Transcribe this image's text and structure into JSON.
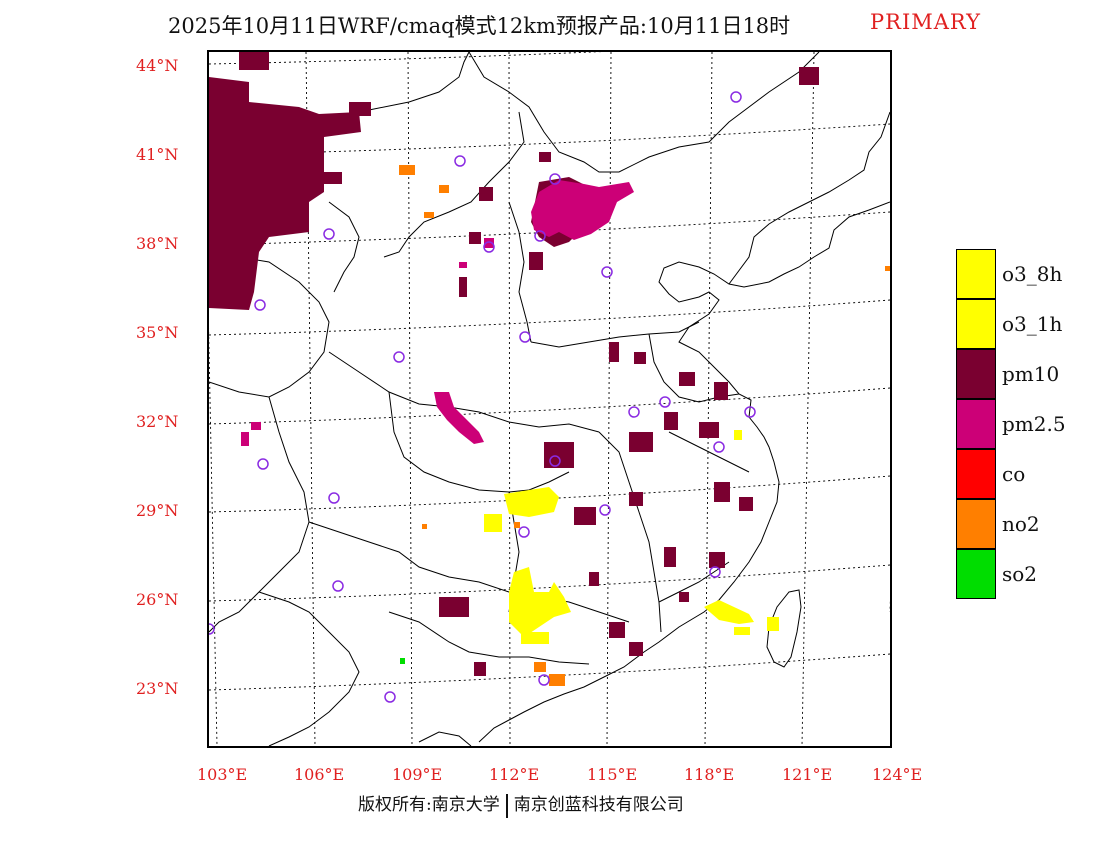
{
  "title": {
    "main": "2025年10月11日WRF/cmaq模式12km预报产品:10月11日18时",
    "badge": "PRIMARY"
  },
  "axes": {
    "lat_labels": [
      "44°N",
      "41°N",
      "38°N",
      "35°N",
      "32°N",
      "29°N",
      "26°N",
      "23°N"
    ],
    "lon_labels": [
      "103°E",
      "106°E",
      "109°E",
      "112°E",
      "115°E",
      "118°E",
      "121°E",
      "124°E"
    ]
  },
  "legend": [
    {
      "label": "o3_8h",
      "color": "#ffff00"
    },
    {
      "label": "o3_1h",
      "color": "#ffff00"
    },
    {
      "label": "pm10",
      "color": "#7a0030"
    },
    {
      "label": "pm2.5",
      "color": "#cc0077"
    },
    {
      "label": "co",
      "color": "#ff0000"
    },
    {
      "label": "no2",
      "color": "#ff7f00"
    },
    {
      "label": "so2",
      "color": "#00dd00"
    }
  ],
  "footer": {
    "left": "版权所有:南京大学",
    "right": "南京创蓝科技有限公司"
  },
  "colors": {
    "pm10": "#7a0030",
    "pm25": "#cc0077",
    "o3": "#ffff00",
    "no2": "#ff7f00",
    "so2": "#00dd00",
    "station": "#8a2be2",
    "label": "#e02020"
  }
}
